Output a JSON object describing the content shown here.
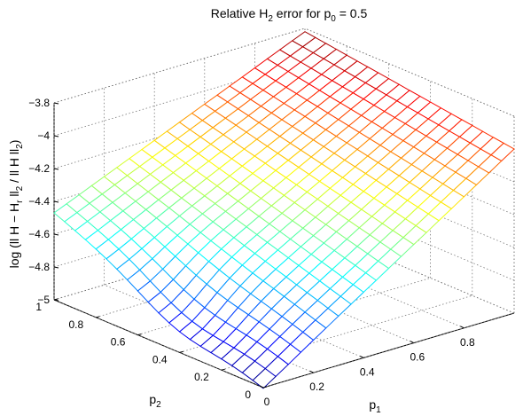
{
  "chart_data": {
    "type": "surface",
    "title": {
      "pre": "Relative H",
      "sub1": "2",
      "mid": " error for p",
      "sub2": "0",
      "post": " = 0.5"
    },
    "xlabel": {
      "base": "p",
      "sub": "1"
    },
    "ylabel": {
      "base": "p",
      "sub": "2"
    },
    "zlabel": {
      "a": "log (ll H − H",
      "a_sub": "r",
      "b": " ll",
      "b_sub": "2",
      "c": " / ll H ll",
      "c_sub": "2",
      "d": ")"
    },
    "x_ticks": [
      "0",
      "0.2",
      "0.4",
      "0.6",
      "0.8"
    ],
    "y_ticks": [
      "0",
      "0.2",
      "0.4",
      "0.6",
      "0.8",
      "1"
    ],
    "z_ticks": [
      "−5",
      "−4.8",
      "−4.6",
      "−4.4",
      "−4.2",
      "−4",
      "−3.8"
    ],
    "xlim": [
      0,
      1
    ],
    "ylim": [
      0,
      1
    ],
    "zlim": [
      -5,
      -3.8
    ],
    "grid": true,
    "colormap": "jet",
    "grid_size": 21,
    "surface_anchors": {
      "z_at_p1_0_p2_0": -5.0,
      "z_at_p1_0_p2_1": -4.47,
      "z_at_p1_1_p2_0": -4.0,
      "z_at_p1_1_p2_1": -3.82
    }
  }
}
